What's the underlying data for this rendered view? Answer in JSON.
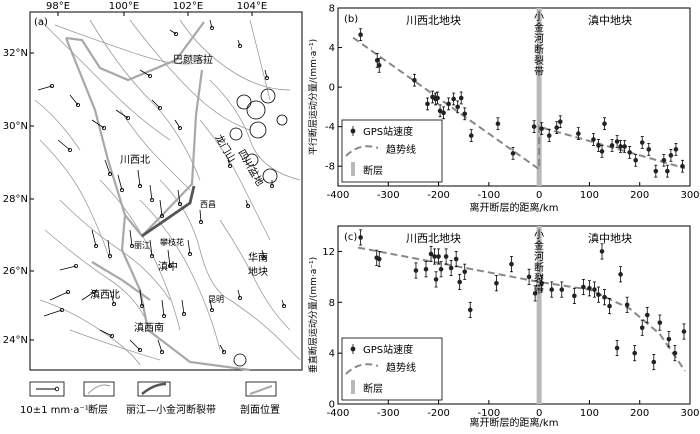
{
  "map": {
    "panel_label": "(a)",
    "lon_labels": [
      "98°E",
      "100°E",
      "102°E",
      "104°E"
    ],
    "lat_labels": [
      "32°N",
      "30°N",
      "28°N",
      "26°N",
      "24°N"
    ],
    "region_labels": {
      "bayankala": "巴颜喀拉",
      "longmenshan": "龙门山",
      "chuanxibei": "川西北",
      "sichuan_basin": "四川盆地",
      "xichang": "西昌",
      "lijiang": "丽江",
      "panzhihua": "攀枝花",
      "dianzhong": "滇中",
      "huanan_1": "华南",
      "huanan_2": "地块",
      "dianxibei": "滇西北",
      "kunming": "昆明",
      "dianxinan": "滇西南"
    },
    "legend": {
      "velocity": "10±1 mm·a⁻¹",
      "fault": "断层",
      "lj_xjh": "丽江—小金河断裂带",
      "profile": "剖面位置"
    }
  },
  "plot_b": {
    "panel_label": "(b)",
    "left_block": "川西北地块",
    "fault_zone": [
      "小",
      "金",
      "河",
      "断",
      "裂",
      "带"
    ],
    "right_block": "滇中地块",
    "ylabel": "平行断层运动分量/(mm·a⁻¹)",
    "xlabel": "离开断层的距离/km",
    "legend": {
      "gps": "GPS站速度",
      "trend": "趋势线",
      "fault": "断层"
    }
  },
  "plot_c": {
    "panel_label": "(c)",
    "left_block": "川西北地块",
    "fault_zone": [
      "小",
      "金",
      "河",
      "断",
      "裂",
      "带"
    ],
    "right_block": "滇中地块",
    "ylabel": "垂直断层运动分量/(mm·a⁻¹)",
    "xlabel": "离开断层的距离/km",
    "legend": {
      "gps": "GPS站速度",
      "trend": "趋势线",
      "fault": "断层"
    }
  },
  "chart_data": [
    {
      "type": "scatter",
      "panel": "b",
      "xlabel": "离开断层的距离/km",
      "ylabel": "平行断层运动分量/(mm·a⁻¹)",
      "xlim": [
        -400,
        300
      ],
      "ylim": [
        -10,
        8
      ],
      "xticks": [
        -400,
        -300,
        -200,
        -100,
        0,
        100,
        200,
        300
      ],
      "yticks": [
        -8,
        -4,
        0,
        4,
        8
      ],
      "series": [
        {
          "name": "GPS站速度",
          "points": [
            [
              -355,
              5.3
            ],
            [
              -322,
              2.7
            ],
            [
              -318,
              2.2
            ],
            [
              -248,
              0.7
            ],
            [
              -222,
              -1.7
            ],
            [
              -212,
              -1.0
            ],
            [
              -206,
              -1.2
            ],
            [
              -202,
              -1.1
            ],
            [
              -197,
              -2.4
            ],
            [
              -190,
              -2.6
            ],
            [
              -180,
              -1.7
            ],
            [
              -170,
              -1.2
            ],
            [
              -162,
              -2.0
            ],
            [
              -155,
              -1.1
            ],
            [
              -148,
              -2.7
            ],
            [
              -135,
              -4.9
            ],
            [
              -82,
              -3.7
            ],
            [
              -52,
              -6.7
            ],
            [
              -10,
              -4.0
            ],
            [
              5,
              -4.2
            ],
            [
              20,
              -4.9
            ],
            [
              35,
              -4.1
            ],
            [
              42,
              -3.5
            ],
            [
              78,
              -4.7
            ],
            [
              108,
              -5.3
            ],
            [
              118,
              -5.9
            ],
            [
              125,
              -6.5
            ],
            [
              130,
              -3.7
            ],
            [
              145,
              -5.9
            ],
            [
              155,
              -5.5
            ],
            [
              162,
              -6.0
            ],
            [
              170,
              -6.0
            ],
            [
              180,
              -6.6
            ],
            [
              192,
              -7.4
            ],
            [
              205,
              -5.6
            ],
            [
              218,
              -6.3
            ],
            [
              232,
              -8.5
            ],
            [
              248,
              -7.4
            ],
            [
              255,
              -8.5
            ],
            [
              262,
              -6.9
            ],
            [
              272,
              -6.3
            ],
            [
              285,
              -8.0
            ]
          ],
          "errors": [
            0.6,
            0.7,
            0.7,
            0.6,
            0.6,
            0.6,
            0.6,
            0.6,
            0.6,
            0.6,
            0.6,
            0.6,
            0.6,
            0.6,
            0.6,
            0.6,
            0.6,
            0.6,
            0.6,
            0.6,
            0.6,
            0.6,
            0.6,
            0.6,
            0.6,
            0.6,
            0.6,
            0.6,
            0.6,
            0.6,
            0.6,
            0.6,
            0.6,
            0.6,
            0.6,
            0.6,
            0.6,
            0.6,
            0.6,
            0.6,
            0.6,
            0.6
          ]
        },
        {
          "name": "趋势线",
          "points": [
            [
              -370,
              5.0
            ],
            [
              0,
              -8.3
            ],
            [
              0,
              -4.0
            ],
            [
              290,
              -8.2
            ]
          ]
        }
      ],
      "fault_x": 0
    },
    {
      "type": "scatter",
      "panel": "c",
      "xlabel": "离开断层的距离/km",
      "ylabel": "垂直断层运动分量/(mm·a⁻¹)",
      "xlim": [
        -400,
        300
      ],
      "ylim": [
        0,
        14
      ],
      "xticks": [
        -400,
        -300,
        -200,
        -100,
        0,
        100,
        200,
        300
      ],
      "yticks": [
        0,
        4,
        8,
        12
      ],
      "series": [
        {
          "name": "GPS站速度",
          "points": [
            [
              -355,
              13.1
            ],
            [
              -323,
              11.5
            ],
            [
              -318,
              11.4
            ],
            [
              -245,
              10.5
            ],
            [
              -225,
              10.6
            ],
            [
              -215,
              11.8
            ],
            [
              -208,
              11.6
            ],
            [
              -205,
              9.8
            ],
            [
              -200,
              11.6
            ],
            [
              -195,
              10.6
            ],
            [
              -185,
              11.6
            ],
            [
              -175,
              10.7
            ],
            [
              -165,
              11.4
            ],
            [
              -158,
              9.6
            ],
            [
              -148,
              10.4
            ],
            [
              -137,
              7.4
            ],
            [
              -85,
              9.5
            ],
            [
              -55,
              11.0
            ],
            [
              -20,
              10.0
            ],
            [
              -8,
              8.7
            ],
            [
              5,
              9.5
            ],
            [
              25,
              9.0
            ],
            [
              45,
              9.0
            ],
            [
              70,
              8.5
            ],
            [
              88,
              9.2
            ],
            [
              100,
              9.1
            ],
            [
              110,
              9.0
            ],
            [
              118,
              8.6
            ],
            [
              125,
              12.0
            ],
            [
              130,
              8.4
            ],
            [
              140,
              7.7
            ],
            [
              155,
              4.4
            ],
            [
              162,
              10.2
            ],
            [
              175,
              7.8
            ],
            [
              190,
              4.0
            ],
            [
              205,
              6.0
            ],
            [
              215,
              7.0
            ],
            [
              228,
              3.3
            ],
            [
              240,
              6.4
            ],
            [
              258,
              5.1
            ],
            [
              270,
              4.0
            ],
            [
              288,
              5.7
            ]
          ],
          "errors": [
            0.6,
            0.6,
            0.6,
            0.6,
            0.6,
            0.6,
            0.6,
            0.6,
            0.6,
            0.6,
            0.6,
            0.6,
            0.6,
            0.6,
            0.6,
            0.6,
            0.6,
            0.6,
            0.6,
            0.6,
            0.6,
            0.6,
            0.6,
            0.6,
            0.6,
            0.6,
            0.6,
            0.6,
            0.6,
            0.6,
            0.6,
            0.6,
            0.6,
            0.6,
            0.6,
            0.6,
            0.6,
            0.6,
            0.6,
            0.6,
            0.6,
            0.6
          ]
        },
        {
          "name": "趋势线",
          "points": [
            [
              -360,
              12.3
            ],
            [
              0,
              9.6
            ],
            [
              100,
              9.0
            ],
            [
              180,
              7.5
            ],
            [
              240,
              5.5
            ],
            [
              290,
              2.6
            ]
          ]
        }
      ],
      "fault_x": 0
    }
  ]
}
